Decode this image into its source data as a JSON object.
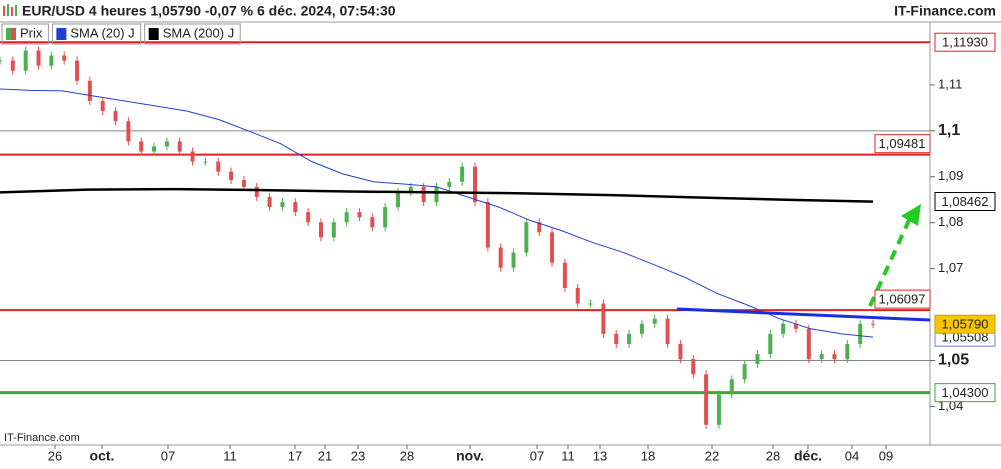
{
  "chart_data": {
    "type": "candles",
    "title": "EUR/USD 4 heures 1,05790 -0,07 % 6 déc. 2024, 07:54:30",
    "brand": "IT-Finance.com",
    "footer": "IT-Finance.com",
    "x_labels": [
      {
        "label": "26"
      },
      {
        "label": "oct.",
        "major": true
      },
      {
        "label": "07"
      },
      {
        "label": "11"
      },
      {
        "label": "17"
      },
      {
        "label": "21"
      },
      {
        "label": "23"
      },
      {
        "label": "28"
      },
      {
        "label": "nov.",
        "major": true
      },
      {
        "label": "07"
      },
      {
        "label": "11"
      },
      {
        "label": "13"
      },
      {
        "label": "18"
      },
      {
        "label": "22"
      },
      {
        "label": "28"
      },
      {
        "label": "déc.",
        "major": true
      },
      {
        "label": "04"
      },
      {
        "label": "09"
      }
    ],
    "ylim": [
      1.0316,
      1.1237
    ],
    "yticks": [
      {
        "value": 1.04,
        "label": "1,04"
      },
      {
        "value": 1.05,
        "label": "1,05",
        "major": true
      },
      {
        "value": 1.07,
        "label": "1,07"
      },
      {
        "value": 1.08,
        "label": "1,08"
      },
      {
        "value": 1.09,
        "label": "1,09"
      },
      {
        "value": 1.1,
        "label": "1,1",
        "major": true
      },
      {
        "value": 1.11,
        "label": "1,11"
      }
    ],
    "levels": [
      {
        "value": 1.1193,
        "label": "1,11930",
        "color": "#e02020"
      },
      {
        "value": 1.09481,
        "label": "1,09481",
        "color": "#e02020"
      },
      {
        "value": 1.06097,
        "label": "1,06097",
        "color": "#e02020"
      },
      {
        "value": 1.043,
        "label": "1,04300",
        "color": "#3aaa35"
      }
    ],
    "series": [
      {
        "name": "Prix",
        "color": "#4caf50",
        "down_color": "#e05050",
        "last_value": {
          "value": 1.0579,
          "label": "1,05790"
        },
        "values": [
          1.1153,
          1.1131,
          1.1175,
          1.1142,
          1.1164,
          1.1153,
          1.1109,
          1.1065,
          1.1043,
          1.1021,
          1.0977,
          1.0955,
          1.0966,
          1.0977,
          1.0955,
          1.0933,
          1.0933,
          1.0911,
          1.0893,
          1.0878,
          1.0856,
          1.0834,
          1.0845,
          1.0823,
          1.0801,
          1.0768,
          1.0801,
          1.0823,
          1.0812,
          1.079,
          1.0834,
          1.0867,
          1.0878,
          1.0845,
          1.0878,
          1.0889,
          1.0922,
          1.0845,
          1.0746,
          1.0702,
          1.0735,
          1.0801,
          1.0779,
          1.0713,
          1.0658,
          1.0624,
          1.0624,
          1.0558,
          1.0536,
          1.0558,
          1.058,
          1.0591,
          1.0536,
          1.0503,
          1.047,
          1.036,
          1.0426,
          1.0459,
          1.0492,
          1.0514,
          1.0558,
          1.058,
          1.0569,
          1.0503,
          1.0514,
          1.0503,
          1.0536,
          1.058,
          1.0579
        ]
      },
      {
        "name": "SMA (20) J",
        "color": "#2040d0",
        "last_value": {
          "value": 1.05508,
          "label": "1,05508"
        },
        "values": [
          1.1091,
          1.1088,
          1.1087,
          1.1076,
          1.1065,
          1.1054,
          1.1043,
          1.1025,
          1.0999,
          1.0972,
          1.0933,
          1.0906,
          1.0889,
          1.0884,
          1.0878,
          1.0856,
          1.0834,
          1.0805,
          1.0783,
          1.0757,
          1.0735,
          1.0708,
          1.068,
          1.0646,
          1.062,
          1.0591,
          1.0569,
          1.0558,
          1.0551
        ]
      },
      {
        "name": "SMA (200) J",
        "color": "#000000",
        "last_value": {
          "value": 1.08462,
          "label": "1,08462"
        },
        "values": [
          1.0866,
          1.0872,
          1.0873,
          1.0871,
          1.0868,
          1.0866,
          1.0864,
          1.086,
          1.0855,
          1.085,
          1.0846
        ]
      }
    ]
  }
}
